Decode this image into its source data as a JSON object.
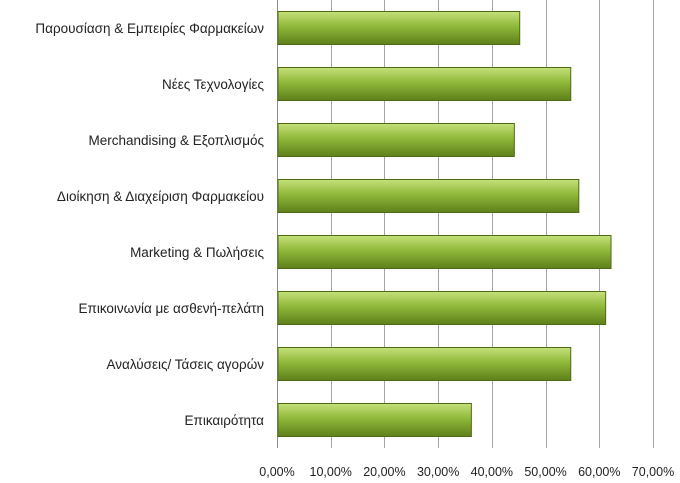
{
  "chart_data": {
    "type": "bar",
    "orientation": "horizontal",
    "title": "",
    "xlabel": "",
    "ylabel": "",
    "categories": [
      "Παρουσίαση & Εμπειρίες Φαρμακείων",
      "Νέες Τεχνολογίες",
      "Merchandising & Εξοπλισμός",
      "Διοίκηση & Διαχείριση Φαρμακείου",
      "Marketing & Πωλήσεις",
      "Επικοινωνία με ασθενή-πελάτη",
      "Αναλύσεις/ Τάσεις αγορών",
      "Επικαιρότητα"
    ],
    "values": [
      45.0,
      54.5,
      44.0,
      56.0,
      62.0,
      61.0,
      54.5,
      36.0
    ],
    "xlim": [
      0,
      70
    ],
    "xticks": [
      0,
      10,
      20,
      30,
      40,
      50,
      60,
      70
    ],
    "xtick_labels": [
      "0,00%",
      "10,00%",
      "20,00%",
      "30,00%",
      "40,00%",
      "50,00%",
      "60,00%",
      "70,00%"
    ],
    "grid": "vertical",
    "legend": "none",
    "colors": {
      "bar_light": "#c6e07a",
      "bar_mid": "#8fb93a",
      "bar_dark": "#5e7f1a",
      "grid": "#a6a6a6"
    }
  }
}
